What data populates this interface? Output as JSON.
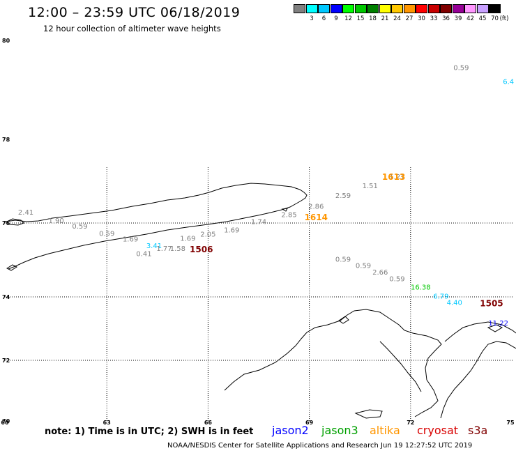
{
  "header": {
    "title": "12:00 – 23:59 UTC 06/18/2019",
    "subtitle": "12 hour collection of altimeter wave heights"
  },
  "colorbar": {
    "labels": [
      "3",
      "6",
      "9",
      "12",
      "15",
      "18",
      "21",
      "24",
      "27",
      "30",
      "33",
      "36",
      "39",
      "42",
      "45",
      "70"
    ],
    "unit": "(ft)",
    "colors": [
      "#808080",
      "#00ffff",
      "#00c8ff",
      "#0000ff",
      "#00ff00",
      "#00c800",
      "#008000",
      "#ffff00",
      "#ffc800",
      "#ff9600",
      "#ff0000",
      "#c80000",
      "#800000",
      "#960096",
      "#ff96ff",
      "#c8a0ff",
      "#000000"
    ]
  },
  "axes": {
    "lat_labels": [
      "80",
      "78",
      "76",
      "74",
      "72",
      "70"
    ],
    "lon_labels": [
      "60",
      "63",
      "66",
      "69",
      "72",
      "75"
    ]
  },
  "swh_observations": [
    {
      "lon": 73.5,
      "lat": 79.4,
      "value": "0.59",
      "color": "#808080"
    },
    {
      "lon": 74.9,
      "lat": 79.12,
      "value": "6.4",
      "color": "#00c8ff"
    },
    {
      "lon": 71.6,
      "lat": 77.05,
      "value": "1.21",
      "color": "#808080"
    },
    {
      "lon": 70.8,
      "lat": 76.83,
      "value": "1.51",
      "color": "#808080"
    },
    {
      "lon": 70.0,
      "lat": 76.6,
      "value": "2.59",
      "color": "#808080"
    },
    {
      "lon": 69.2,
      "lat": 76.34,
      "value": "2.86",
      "color": "#808080"
    },
    {
      "lon": 68.4,
      "lat": 76.14,
      "value": "2.85",
      "color": "#808080"
    },
    {
      "lon": 67.5,
      "lat": 75.97,
      "value": "1.74",
      "color": "#808080"
    },
    {
      "lon": 66.7,
      "lat": 75.75,
      "value": "1.69",
      "color": "#808080"
    },
    {
      "lon": 66.0,
      "lat": 75.63,
      "value": "2.05",
      "color": "#808080"
    },
    {
      "lon": 65.4,
      "lat": 75.52,
      "value": "1.69",
      "color": "#808080"
    },
    {
      "lon": 60.6,
      "lat": 76.2,
      "value": "2.41",
      "color": "#808080"
    },
    {
      "lon": 61.5,
      "lat": 76.0,
      "value": "1.90",
      "color": "#808080"
    },
    {
      "lon": 62.2,
      "lat": 75.85,
      "value": "0.59",
      "color": "#808080"
    },
    {
      "lon": 63.0,
      "lat": 75.65,
      "value": "0.59",
      "color": "#808080"
    },
    {
      "lon": 63.7,
      "lat": 75.5,
      "value": "1.69",
      "color": "#808080"
    },
    {
      "lon": 64.4,
      "lat": 75.32,
      "value": "3.41",
      "color": "#00c8ff"
    },
    {
      "lon": 64.7,
      "lat": 75.25,
      "value": "1.77",
      "color": "#808080"
    },
    {
      "lon": 65.1,
      "lat": 75.25,
      "value": "1.58",
      "color": "#808080"
    },
    {
      "lon": 64.1,
      "lat": 75.1,
      "value": "0.41",
      "color": "#808080"
    },
    {
      "lon": 70.0,
      "lat": 74.95,
      "value": "0.59",
      "color": "#808080"
    },
    {
      "lon": 70.6,
      "lat": 74.78,
      "value": "0.59",
      "color": "#808080"
    },
    {
      "lon": 71.1,
      "lat": 74.6,
      "value": "2.66",
      "color": "#808080"
    },
    {
      "lon": 71.6,
      "lat": 74.42,
      "value": "0.59",
      "color": "#808080"
    },
    {
      "lon": 72.3,
      "lat": 74.2,
      "value": "16.38",
      "color": "#00c800"
    },
    {
      "lon": 72.9,
      "lat": 73.95,
      "value": "6.79",
      "color": "#00c8ff"
    },
    {
      "lon": 73.3,
      "lat": 73.75,
      "value": "4.40",
      "color": "#00c8ff"
    },
    {
      "lon": 74.6,
      "lat": 73.1,
      "value": "11.22",
      "color": "#0000ff"
    }
  ],
  "pass_times": [
    {
      "lon": 71.5,
      "lat": 77.03,
      "value": "1613",
      "color": "#ff9600"
    },
    {
      "lon": 69.2,
      "lat": 76.07,
      "value": "1614",
      "color": "#ff9600"
    },
    {
      "lon": 65.8,
      "lat": 75.21,
      "value": "1506",
      "color": "#800000"
    },
    {
      "lon": 74.4,
      "lat": 73.7,
      "value": "1505",
      "color": "#800000"
    }
  ],
  "note": "note: 1) Time is in UTC; 2) SWH is in feet",
  "legend": [
    {
      "label": "jason2",
      "color": "#0000ff"
    },
    {
      "label": "jason3",
      "color": "#00a000"
    },
    {
      "label": "altika",
      "color": "#ff9600"
    },
    {
      "label": "cryosat",
      "color": "#d80000"
    },
    {
      "label": "s3a",
      "color": "#800000"
    }
  ],
  "footer": "NOAA/NESDIS Center for Satellite Applications and Research    Jun 19 12:27:52 UTC 2019"
}
